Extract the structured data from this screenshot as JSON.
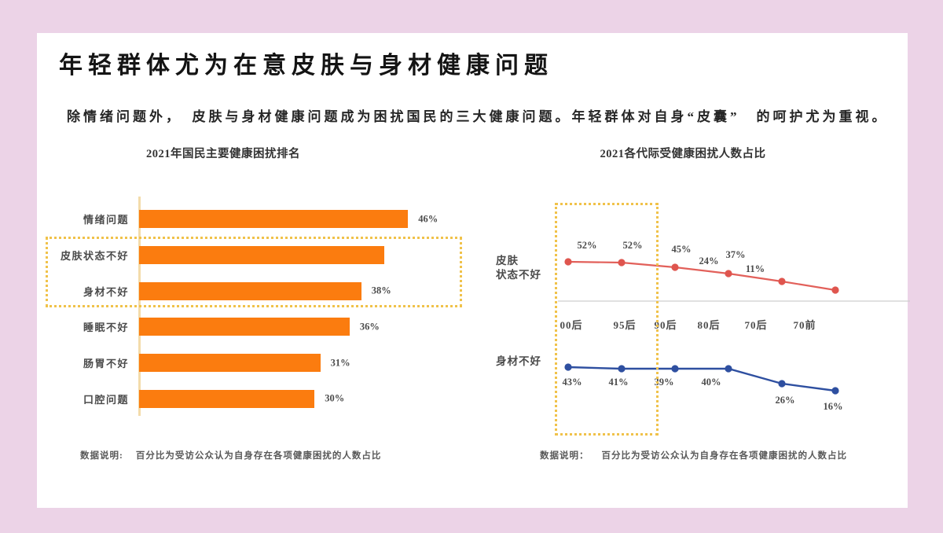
{
  "page": {
    "title": "年轻群体尤为在意皮肤与身材健康问题",
    "subtitle": "除情绪问题外，　皮肤与身材健康问题成为困扰国民的三大健康问题。年轻群体对自身“皮囊”　的呵护尤为重视。"
  },
  "colors": {
    "background_pink": "#ecd3e7",
    "card_white": "#ffffff",
    "bar_orange": "#fb7c0f",
    "axis_tan": "#f3dcab",
    "highlight_gold_dotted": "#f0c24a",
    "line_red": "#e2605a",
    "line_blue": "#2e4fa0",
    "axis_gray": "#cfcfcf",
    "text_dark": "#262626",
    "text_gray": "#4b4b4b"
  },
  "charts": {
    "ranking": {
      "title": "2021年国民主要健康困扰排名",
      "items": [
        {
          "label": "情绪问题",
          "value": 46,
          "pct": "46%"
        },
        {
          "label": "皮肤状态不好",
          "value": 42,
          "pct": "42%"
        },
        {
          "label": "身材不好",
          "value": 38,
          "pct": "38%"
        },
        {
          "label": "睡眠不好",
          "value": 36,
          "pct": "36%"
        },
        {
          "label": "肠胃不好",
          "value": 31,
          "pct": "31%"
        },
        {
          "label": "口腔问题",
          "value": 30,
          "pct": "30%"
        }
      ],
      "note_label": "数据说明:",
      "note": "百分比为受访公众认为自身存在各项健康困扰的人数占比"
    },
    "generations": {
      "title": "2021各代际受健康困扰人数占比",
      "categories": [
        "00后",
        "95后",
        "90后",
        "80后",
        "70后",
        "70前"
      ],
      "series_skin": {
        "display_name": "皮肤\n状态不好",
        "labels": [
          "52%",
          "52%",
          "45%",
          "24%",
          "37%",
          "11%"
        ]
      },
      "series_body": {
        "display_name": "身材不好",
        "labels": [
          "43%",
          "41%",
          "39%",
          "40%",
          "26%",
          "16%"
        ]
      },
      "note_label": "数据说明：",
      "note": "百分比为受访公众认为自身存在各项健康困扰的人数占比"
    }
  },
  "chart_data": [
    {
      "type": "bar",
      "orientation": "horizontal",
      "title": "2021年国民主要健康困扰排名",
      "categories": [
        "情绪问题",
        "皮肤状态不好",
        "身材不好",
        "睡眠不好",
        "肠胃不好",
        "口腔问题"
      ],
      "values": [
        46,
        42,
        38,
        36,
        31,
        30
      ],
      "unit": "%",
      "xlim": [
        0,
        50
      ],
      "bar_color": "#fb7c0f",
      "grid": false,
      "annotations": "皮肤状态不好 与 身材不好 两行被金色虚线框高亮；42%标签被条形部分遮挡",
      "note": "数据说明: 百分比为受访公众认为自身存在各项健康困扰的人数占比"
    },
    {
      "type": "line",
      "title": "2021各代际受健康困扰人数占比",
      "x": [
        "00后",
        "95后",
        "90后",
        "80后",
        "70后",
        "70前"
      ],
      "series": [
        {
          "name": "皮肤状态不好",
          "color": "#e2605a",
          "values": [
            52,
            52,
            45,
            24,
            37,
            11
          ]
        },
        {
          "name": "身材不好",
          "color": "#2e4fa0",
          "values": [
            43,
            41,
            39,
            40,
            26,
            16
          ]
        }
      ],
      "unit": "%",
      "grid": false,
      "legend_position": "left-of-lines",
      "annotations": "00后 与 95后 两列被金色虚线框高亮",
      "note": "数据说明： 百分比为受访公众认为自身存在各项健康困扰的人数占比"
    }
  ]
}
